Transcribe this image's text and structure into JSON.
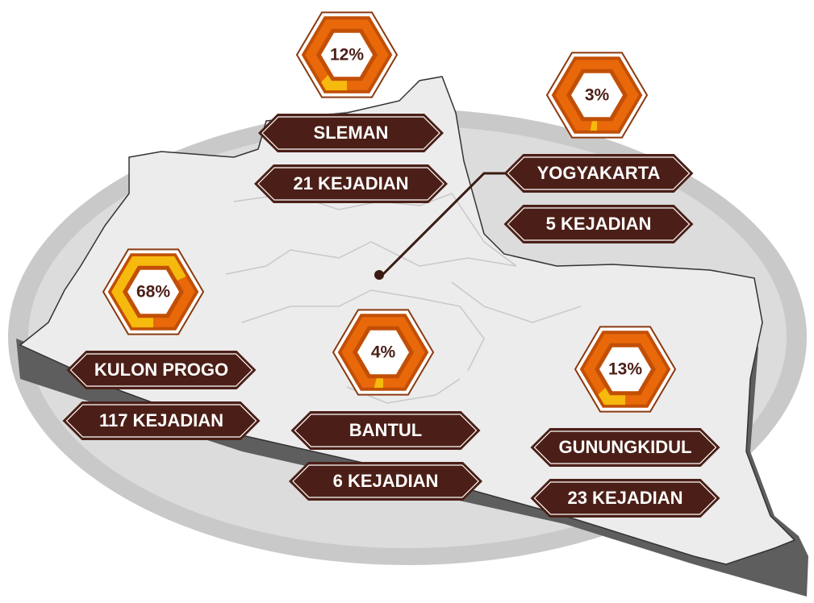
{
  "regions": [
    {
      "name": "SLEMAN",
      "percent": 12,
      "percent_label": "12%",
      "count_label": "21 KEJADIAN"
    },
    {
      "name": "YOGYAKARTA",
      "percent": 3,
      "percent_label": "3%",
      "count_label": "5 KEJADIAN"
    },
    {
      "name": "KULON PROGO",
      "percent": 68,
      "percent_label": "68%",
      "count_label": "117 KEJADIAN"
    },
    {
      "name": "BANTUL",
      "percent": 4,
      "percent_label": "4%",
      "count_label": "6 KEJADIAN"
    },
    {
      "name": "GUNUNGKIDUL",
      "percent": 13,
      "percent_label": "13%",
      "count_label": "23 KEJADIAN"
    }
  ]
}
